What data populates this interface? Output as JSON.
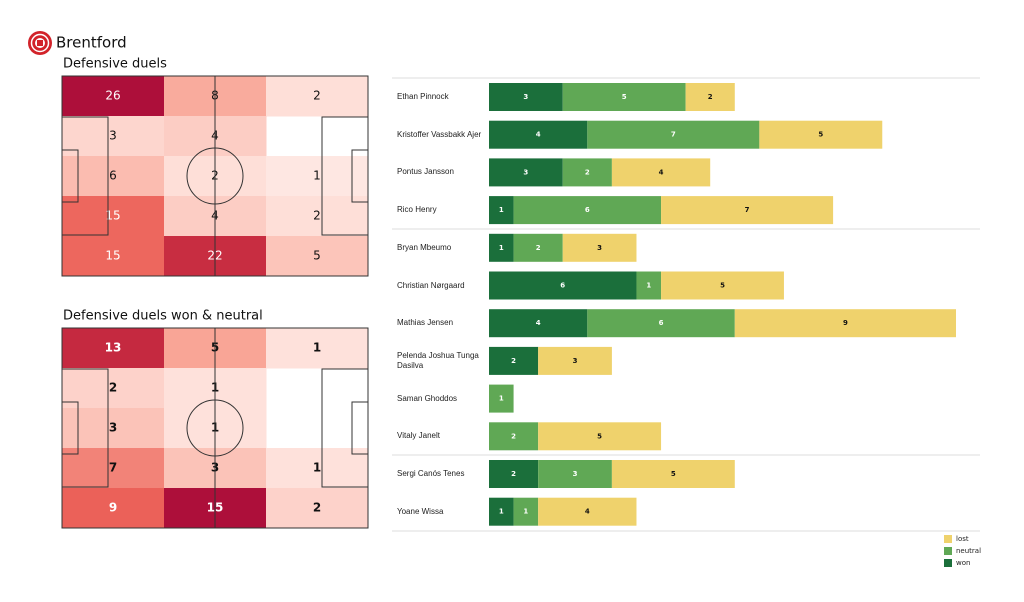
{
  "title": "Brentford",
  "chart_data": [
    {
      "type": "heatmap",
      "title": "Defensive duels",
      "colormap": [
        "#fff0ec",
        "#f9a596",
        "#e8504a",
        "#ad0f3a"
      ],
      "values": [
        [
          26,
          8,
          2
        ],
        [
          3,
          4,
          null
        ],
        [
          6,
          2,
          1
        ],
        [
          15,
          4,
          2
        ],
        [
          15,
          22,
          5
        ]
      ]
    },
    {
      "type": "heatmap",
      "title": "Defensive duels won & neutral",
      "colormap": [
        "#fff0ec",
        "#f9a596",
        "#e8504a",
        "#ad0f3a"
      ],
      "values": [
        [
          13,
          5,
          1
        ],
        [
          2,
          1,
          null
        ],
        [
          3,
          1,
          null
        ],
        [
          7,
          3,
          1
        ],
        [
          9,
          15,
          2
        ]
      ]
    },
    {
      "type": "bar",
      "orientation": "horizontal",
      "stacked": true,
      "legend": "lower right",
      "categories": [
        "Ethan Pinnock",
        "Kristoffer Vassbakk Ajer",
        "Pontus Jansson",
        "Rico Henry",
        "Bryan Mbeumo",
        "Christian Nørgaard",
        "Mathias Jensen",
        "Pelenda Joshua Tunga Dasilva",
        "Saman Ghoddos",
        "Vitaly Janelt",
        "Sergi Canós Tenes",
        "Yoane Wissa"
      ],
      "series": [
        {
          "name": "won",
          "color": "#1b6f3b",
          "values": [
            3,
            4,
            3,
            1,
            1,
            6,
            4,
            2,
            null,
            null,
            2,
            1
          ]
        },
        {
          "name": "neutral",
          "color": "#60a855",
          "values": [
            5,
            7,
            2,
            6,
            2,
            1,
            6,
            null,
            1,
            2,
            3,
            1
          ]
        },
        {
          "name": "lost",
          "color": "#efd26c",
          "values": [
            2,
            5,
            4,
            7,
            3,
            5,
            9,
            3,
            null,
            5,
            5,
            4
          ]
        }
      ]
    }
  ]
}
